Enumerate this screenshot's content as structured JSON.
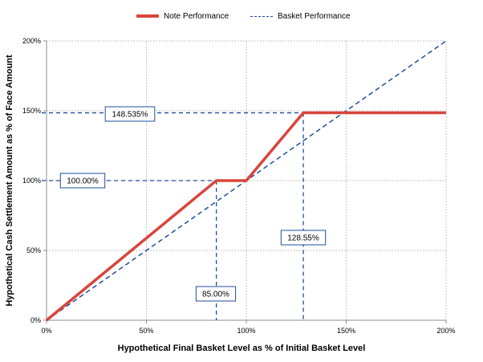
{
  "chart_data": {
    "type": "line",
    "xlabel": "Hypothetical Final Basket Level as % of Initial Basket Level",
    "ylabel": "Hypothetical Cash Settlement Amount as % of Face Amount",
    "xlim": [
      0,
      200
    ],
    "ylim": [
      0,
      200
    ],
    "x_ticks": [
      0,
      50,
      100,
      150,
      200
    ],
    "y_ticks": [
      0,
      50,
      100,
      150,
      200
    ],
    "x_tick_labels": [
      "0%",
      "50%",
      "100%",
      "150%",
      "200%"
    ],
    "y_tick_labels": [
      "0%",
      "50%",
      "100%",
      "150%",
      "200%"
    ],
    "grid": true,
    "legend_position": "top",
    "series": [
      {
        "name": "Note Performance",
        "style": "solid",
        "color": "#d9453c",
        "x": [
          0,
          85,
          100,
          128.55,
          200
        ],
        "y": [
          0,
          100,
          100,
          148.535,
          148.535
        ]
      },
      {
        "name": "Basket Performance",
        "style": "dashed",
        "color": "#1f4e9c",
        "x": [
          0,
          200
        ],
        "y": [
          0,
          200
        ]
      }
    ],
    "annotations": [
      {
        "label": "148.535%",
        "type": "horizontal",
        "value": 148.535
      },
      {
        "label": "100.00%",
        "type": "horizontal",
        "value": 100
      },
      {
        "label": "85.00%",
        "type": "vertical",
        "value": 85
      },
      {
        "label": "128.55%",
        "type": "vertical",
        "value": 128.55
      }
    ]
  },
  "legend": {
    "note_label": "Note Performance",
    "basket_label": "Basket Performance"
  }
}
